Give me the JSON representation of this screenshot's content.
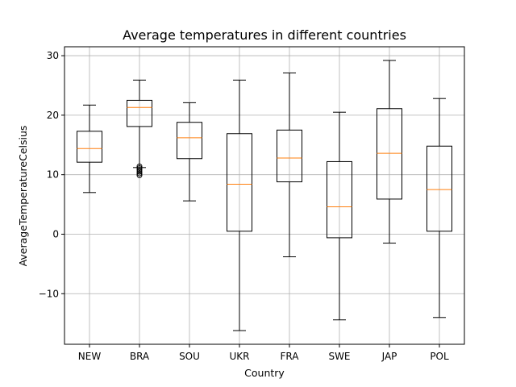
{
  "chart_data": {
    "type": "box",
    "title": "Average temperatures in different countries",
    "xlabel": "Country",
    "ylabel": "AverageTemperatureCelsius",
    "ylim": [
      -18.5,
      31.5
    ],
    "yticks": [
      -10,
      0,
      10,
      20,
      30
    ],
    "ytick_labels": [
      "−10",
      "0",
      "10",
      "20",
      "30"
    ],
    "grid": true,
    "categories": [
      "NEW",
      "BRA",
      "SOU",
      "UKR",
      "FRA",
      "SWE",
      "JAP",
      "POL"
    ],
    "boxes": [
      {
        "whisker_low": 7.0,
        "q1": 12.1,
        "median": 14.4,
        "q3": 17.3,
        "whisker_high": 21.7,
        "outliers": []
      },
      {
        "whisker_low": 11.2,
        "q1": 18.1,
        "median": 21.3,
        "q3": 22.5,
        "whisker_high": 25.9,
        "outliers": [
          11.4,
          11.1,
          10.8,
          10.5,
          10.2,
          9.9
        ]
      },
      {
        "whisker_low": 5.6,
        "q1": 12.7,
        "median": 16.2,
        "q3": 18.8,
        "whisker_high": 22.1,
        "outliers": []
      },
      {
        "whisker_low": -16.2,
        "q1": 0.5,
        "median": 8.4,
        "q3": 16.9,
        "whisker_high": 25.9,
        "outliers": []
      },
      {
        "whisker_low": -3.8,
        "q1": 8.8,
        "median": 12.8,
        "q3": 17.5,
        "whisker_high": 27.1,
        "outliers": []
      },
      {
        "whisker_low": -14.4,
        "q1": -0.6,
        "median": 4.6,
        "q3": 12.2,
        "whisker_high": 20.5,
        "outliers": []
      },
      {
        "whisker_low": -1.5,
        "q1": 5.9,
        "median": 13.6,
        "q3": 21.1,
        "whisker_high": 29.2,
        "outliers": []
      },
      {
        "whisker_low": -14.0,
        "q1": 0.5,
        "median": 7.5,
        "q3": 14.8,
        "whisker_high": 22.8,
        "outliers": []
      }
    ],
    "colors": {
      "box": "#000000",
      "median": "#ff7f0e",
      "grid": "#b0b0b0"
    }
  }
}
